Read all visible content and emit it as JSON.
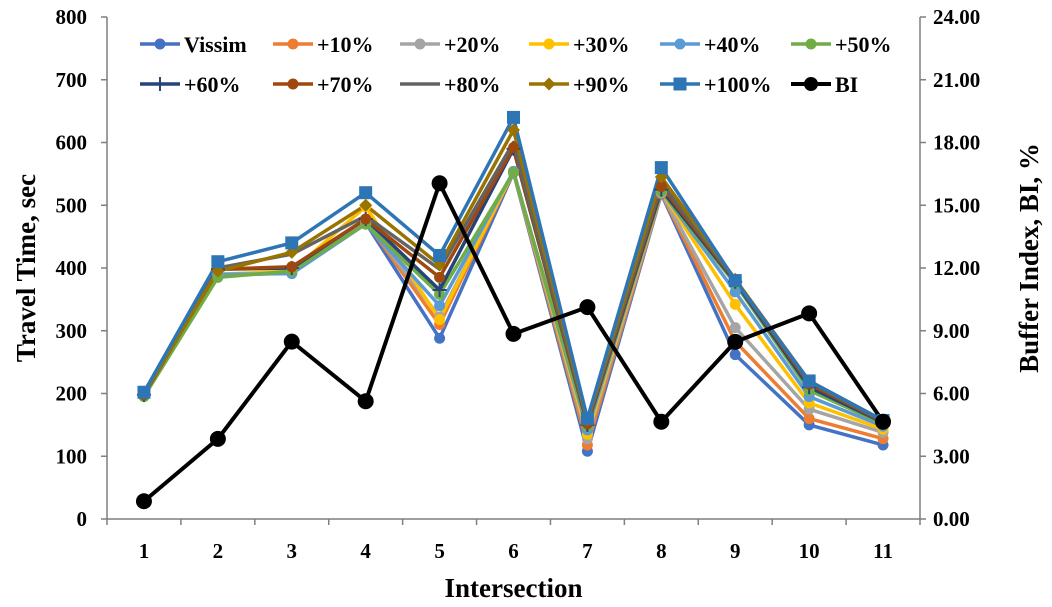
{
  "chart_data": {
    "type": "line",
    "categories": [
      "1",
      "2",
      "3",
      "4",
      "5",
      "6",
      "7",
      "8",
      "9",
      "10",
      "11"
    ],
    "xlabel": "Intersection",
    "ylabel": "Travel Time, sec",
    "y2label": "Buffer Index, BI, %",
    "ylim": [
      0,
      800
    ],
    "y2lim": [
      0,
      24
    ],
    "yticks": [
      "0",
      "100",
      "200",
      "300",
      "400",
      "500",
      "600",
      "700",
      "800"
    ],
    "y2ticks": [
      "0.00",
      "3.00",
      "6.00",
      "9.00",
      "12.00",
      "15.00",
      "18.00",
      "21.00",
      "24.00"
    ],
    "grid": false,
    "legend_position": "top",
    "series": [
      {
        "name": "Vissim",
        "color": "#4472C4",
        "marker": "circle",
        "axis": "left",
        "values": [
          196,
          388,
          392,
          472,
          288,
          552,
          108,
          518,
          262,
          150,
          118
        ]
      },
      {
        "name": "+10%",
        "color": "#ED7D31",
        "marker": "circle",
        "axis": "left",
        "values": [
          196,
          388,
          393,
          474,
          310,
          553,
          118,
          519,
          283,
          160,
          128
        ]
      },
      {
        "name": "+20%",
        "color": "#A5A5A5",
        "marker": "circle",
        "axis": "left",
        "values": [
          196,
          389,
          394,
          475,
          322,
          553,
          128,
          520,
          305,
          175,
          138
        ]
      },
      {
        "name": "+30%",
        "color": "#FFC000",
        "marker": "circle",
        "axis": "left",
        "values": [
          196,
          390,
          395,
          498,
          318,
          554,
          135,
          522,
          342,
          185,
          143
        ]
      },
      {
        "name": "+40%",
        "color": "#5B9BD5",
        "marker": "circle",
        "axis": "left",
        "values": [
          197,
          390,
          391,
          470,
          340,
          554,
          142,
          523,
          362,
          195,
          148
        ]
      },
      {
        "name": "+50%",
        "color": "#70AD47",
        "marker": "circle",
        "axis": "left",
        "values": [
          195,
          385,
          395,
          470,
          358,
          552,
          148,
          522,
          375,
          205,
          152
        ]
      },
      {
        "name": "+60%",
        "color": "#264478",
        "marker": "plus",
        "axis": "left",
        "values": [
          198,
          398,
          400,
          478,
          365,
          590,
          150,
          525,
          378,
          210,
          154
        ]
      },
      {
        "name": "+70%",
        "color": "#9E480E",
        "marker": "circle",
        "axis": "left",
        "values": [
          198,
          398,
          402,
          478,
          385,
          592,
          152,
          530,
          380,
          215,
          155
        ]
      },
      {
        "name": "+80%",
        "color": "#636363",
        "marker": "none",
        "axis": "left",
        "values": [
          199,
          400,
          422,
          483,
          398,
          600,
          155,
          535,
          382,
          218,
          156
        ]
      },
      {
        "name": "+90%",
        "color": "#997300",
        "marker": "diamond",
        "axis": "left",
        "values": [
          200,
          395,
          425,
          500,
          405,
          620,
          158,
          545,
          382,
          220,
          157
        ]
      },
      {
        "name": "+100%",
        "color": "#2E75B6",
        "marker": "square",
        "axis": "left",
        "values": [
          202,
          410,
          440,
          520,
          420,
          640,
          160,
          560,
          380,
          220,
          157
        ]
      },
      {
        "name": "BI",
        "color": "#000000",
        "marker": "circle",
        "axis": "right",
        "values": [
          0.85,
          3.83,
          8.48,
          5.63,
          16.05,
          8.85,
          10.13,
          4.65,
          8.47,
          9.83,
          4.65
        ]
      }
    ]
  }
}
